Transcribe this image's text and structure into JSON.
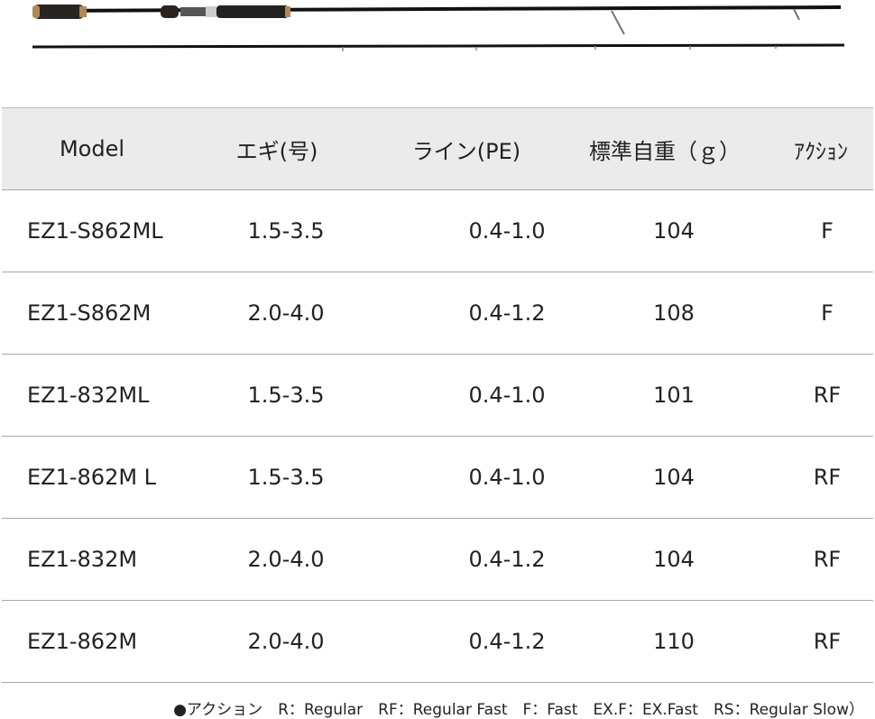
{
  "table": {
    "header": [
      "Model",
      "エギ(号)",
      "ライン(PE)",
      "標準自重（ｇ）",
      "ｱｸｼｮﾝ"
    ],
    "rows": [
      [
        "EZ1-S862ML",
        "1.5-3.5",
        "0.4-1.0",
        "104",
        "F"
      ],
      [
        "EZ1-S862M",
        "2.0-4.0",
        "0.4-1.2",
        "108",
        "F"
      ],
      [
        "EZ1-832ML",
        "1.5-3.5",
        "0.4-1.0",
        "101",
        "RF"
      ],
      [
        "EZ1-862M L",
        "1.5-3.5",
        "0.4-1.0",
        "104",
        "RF"
      ],
      [
        "EZ1-832M",
        "2.0-4.0",
        "0.4-1.2",
        "104",
        "RF"
      ],
      [
        "EZ1-862M",
        "2.0-4.0",
        "0.4-1.2",
        "110",
        "RF"
      ]
    ]
  },
  "footer": {
    "note": "●アクション　R：Regular　RF：Regular Fast　F：Fast　EX.F：EX.Fast　RS：Regular Slow）"
  }
}
